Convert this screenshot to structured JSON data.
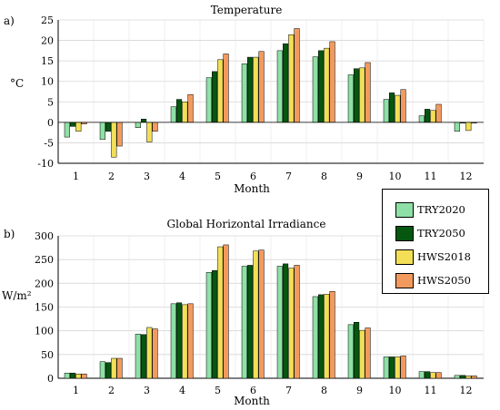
{
  "colors": {
    "TRY2020": "#8fe0a6",
    "TRY2050": "#05570f",
    "HWS2018": "#f2df56",
    "HWS2050": "#f29a5e"
  },
  "chart_data": [
    {
      "type": "bar",
      "panel_label": "a)",
      "title": "Temperature",
      "xlabel": "Month",
      "ylabel": "°C",
      "ylim": [
        -10,
        25
      ],
      "yticks": [
        -10,
        -5,
        0,
        5,
        10,
        15,
        20,
        25
      ],
      "categories": [
        "1",
        "2",
        "3",
        "4",
        "5",
        "6",
        "7",
        "8",
        "9",
        "10",
        "11",
        "12"
      ],
      "series": [
        {
          "name": "TRY2020",
          "values": [
            -3.6,
            -4.2,
            -1.3,
            3.8,
            10.9,
            14.3,
            17.5,
            16.0,
            11.6,
            5.6,
            1.6,
            -2.2
          ]
        },
        {
          "name": "TRY2050",
          "values": [
            -1.0,
            -2.2,
            0.8,
            5.6,
            12.4,
            15.9,
            19.2,
            17.5,
            13.1,
            7.2,
            3.2,
            -0.2
          ]
        },
        {
          "name": "HWS2018",
          "values": [
            -2.2,
            -8.5,
            -4.8,
            5.0,
            15.3,
            15.9,
            21.4,
            18.1,
            13.3,
            6.6,
            2.9,
            -2.0
          ]
        },
        {
          "name": "HWS2050",
          "values": [
            -0.4,
            -5.8,
            -2.2,
            6.8,
            16.7,
            17.3,
            22.9,
            19.7,
            14.6,
            8.0,
            4.4,
            -0.2
          ]
        }
      ]
    },
    {
      "type": "bar",
      "panel_label": "b)",
      "title": "Global Horizontal Irradiance",
      "xlabel": "Month",
      "ylabel": "W/m²",
      "ylim": [
        0,
        300
      ],
      "yticks": [
        0,
        50,
        100,
        150,
        200,
        250,
        300
      ],
      "categories": [
        "1",
        "2",
        "3",
        "4",
        "5",
        "6",
        "7",
        "8",
        "9",
        "10",
        "11",
        "12"
      ],
      "series": [
        {
          "name": "TRY2020",
          "values": [
            11,
            35,
            93,
            157,
            223,
            236,
            236,
            172,
            113,
            45,
            14,
            6
          ]
        },
        {
          "name": "TRY2050",
          "values": [
            11,
            33,
            92,
            159,
            227,
            238,
            241,
            176,
            118,
            45,
            14,
            6
          ]
        },
        {
          "name": "HWS2018",
          "values": [
            9,
            42,
            107,
            155,
            277,
            268,
            232,
            177,
            101,
            45,
            12,
            5
          ]
        },
        {
          "name": "HWS2050",
          "values": [
            9,
            42,
            104,
            157,
            281,
            270,
            238,
            183,
            106,
            47,
            12,
            5
          ]
        }
      ]
    }
  ],
  "legend": {
    "items": [
      {
        "label": "TRY2020",
        "color": "#8fe0a6"
      },
      {
        "label": "TRY2050",
        "color": "#05570f"
      },
      {
        "label": "HWS2018",
        "color": "#f2df56"
      },
      {
        "label": "HWS2050",
        "color": "#f29a5e"
      }
    ]
  }
}
